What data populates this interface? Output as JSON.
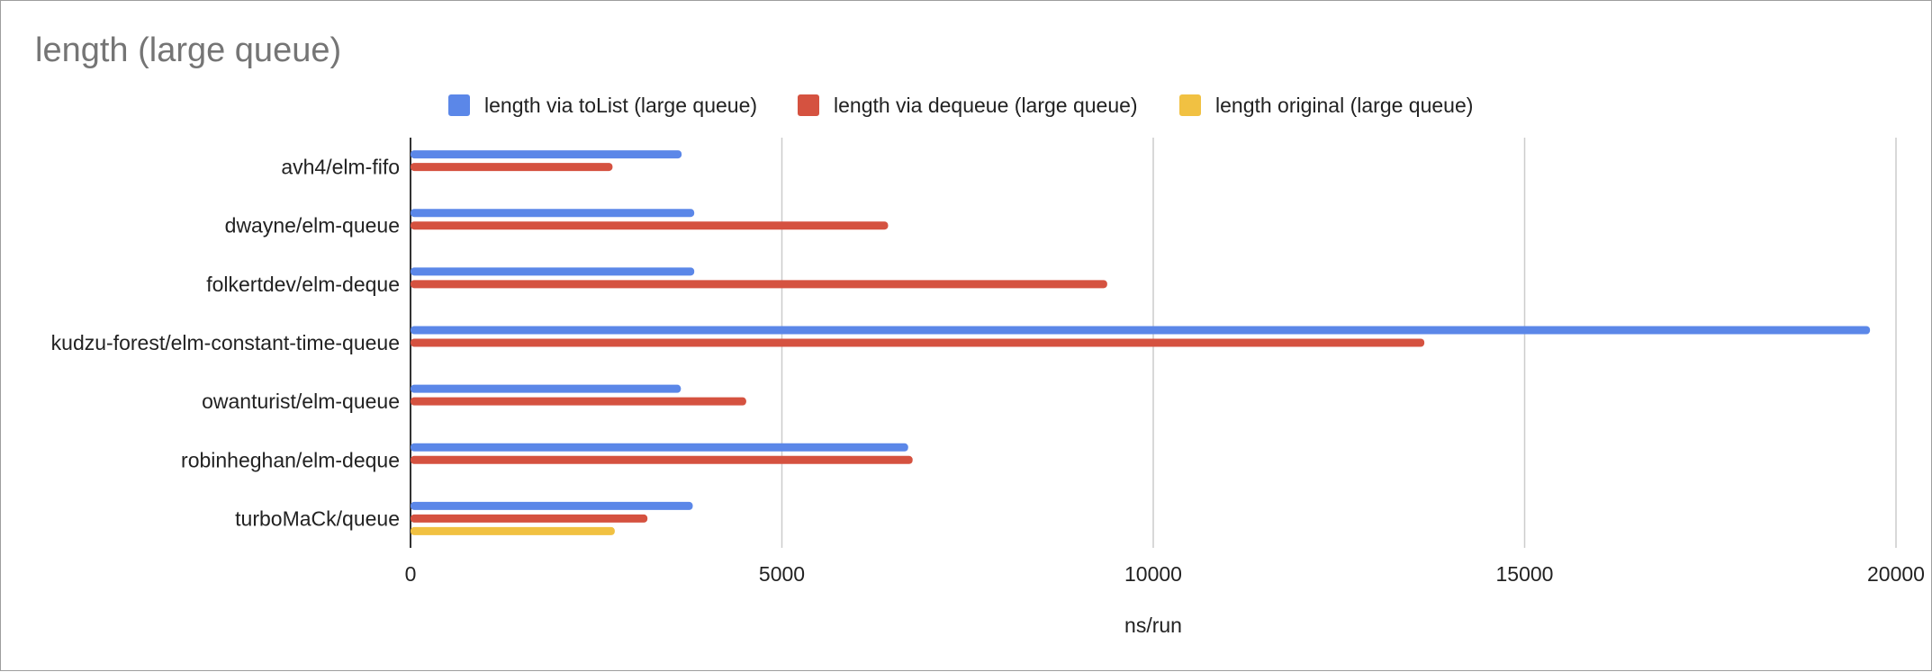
{
  "chart_data": {
    "type": "bar",
    "orientation": "horizontal",
    "title": "length (large queue)",
    "xlabel": "ns/run",
    "ylabel": "",
    "categories": [
      "avh4/elm-fifo",
      "dwayne/elm-queue",
      "folkertdev/elm-deque",
      "kudzu-forest/elm-constant-time-queue",
      "owanturist/elm-queue",
      "robinheghan/elm-deque",
      "turboMaCk/queue"
    ],
    "series": [
      {
        "name": "length via toList (large queue)",
        "color": "#5b87e8",
        "values": [
          3650,
          3820,
          3820,
          19650,
          3640,
          6700,
          3800
        ]
      },
      {
        "name": "length via dequeue (large queue)",
        "color": "#d55240",
        "values": [
          2720,
          6430,
          9380,
          13650,
          4520,
          6760,
          3190
        ]
      },
      {
        "name": "length original (large queue)",
        "color": "#f1c142",
        "values": [
          null,
          null,
          null,
          null,
          null,
          null,
          2750
        ]
      }
    ],
    "xlim": [
      0,
      20000
    ],
    "xticks": [
      0,
      5000,
      10000,
      15000,
      20000
    ],
    "grid": true,
    "legend_position": "top"
  }
}
